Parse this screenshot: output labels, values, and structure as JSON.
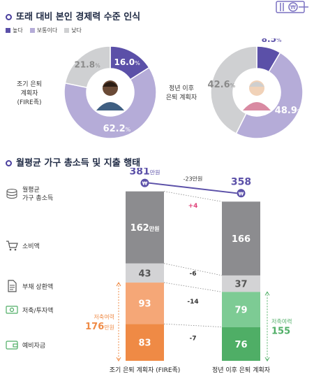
{
  "section1": {
    "title": "또래 대비 본인 경제력 수준 인식",
    "legend": [
      {
        "label": "높다",
        "color": "#5b50a8"
      },
      {
        "label": "보통이다",
        "color": "#b5acd8"
      },
      {
        "label": "낮다",
        "color": "#cfd0d2"
      }
    ]
  },
  "section2": {
    "title": "월평균 가구 총소득 및 지출 행태"
  },
  "chart_data": [
    {
      "type": "pie",
      "group_label": "조기 은퇴\n계획자\n(FIRE족)",
      "categories": [
        "높다",
        "보통이다",
        "낮다"
      ],
      "values": [
        16.0,
        62.2,
        21.8
      ],
      "labels": [
        "16.0",
        "62.2",
        "21.8"
      ],
      "unit": "%"
    },
    {
      "type": "pie",
      "group_label": "정년 이후\n은퇴 계획자",
      "categories": [
        "높다",
        "보통이다",
        "낮다"
      ],
      "values": [
        8.5,
        48.9,
        42.6
      ],
      "labels": [
        "8.5",
        "48.9",
        "42.6"
      ],
      "unit": "%"
    },
    {
      "type": "bar",
      "stacked": true,
      "categories": [
        "조기 은퇴 계획자 (FIRE족)",
        "정년 이후 은퇴 계획자"
      ],
      "series": [
        {
          "name": "소비액",
          "values": [
            162,
            166
          ],
          "labels": [
            "162",
            "166"
          ],
          "colors": [
            "#8c8c8f",
            "#8c8c8f"
          ]
        },
        {
          "name": "부채 상환액",
          "values": [
            43,
            37
          ],
          "labels": [
            "43",
            "37"
          ],
          "colors": [
            "#d3d3d5",
            "#d3d3d5"
          ]
        },
        {
          "name": "저축/투자액",
          "values": [
            93,
            79
          ],
          "labels": [
            "93",
            "79"
          ],
          "colors": [
            "#f5a777",
            "#7dcb94"
          ]
        },
        {
          "name": "예비자금",
          "values": [
            83,
            76
          ],
          "labels": [
            "83",
            "76"
          ],
          "colors": [
            "#ef8a45",
            "#4fae66"
          ]
        }
      ],
      "first_value_suffix": "만원",
      "totals": {
        "values": [
          381,
          358
        ],
        "labels": [
          "381",
          "358"
        ],
        "suffix": "만원",
        "label": "월평균\n가구 총소득"
      },
      "total_diff": "-23만원",
      "diffs": [
        "+4",
        "-6",
        "-14",
        "-7"
      ],
      "savings": [
        {
          "label": "저축여력",
          "value": "176",
          "suffix": "만원",
          "color": "#ef8a45"
        },
        {
          "label": "저축여력",
          "value": "155",
          "suffix": "",
          "color": "#4fae66"
        }
      ],
      "colors": {
        "total": "#5b50a8",
        "plus": "#e0457b",
        "minus": "#333333"
      }
    }
  ]
}
